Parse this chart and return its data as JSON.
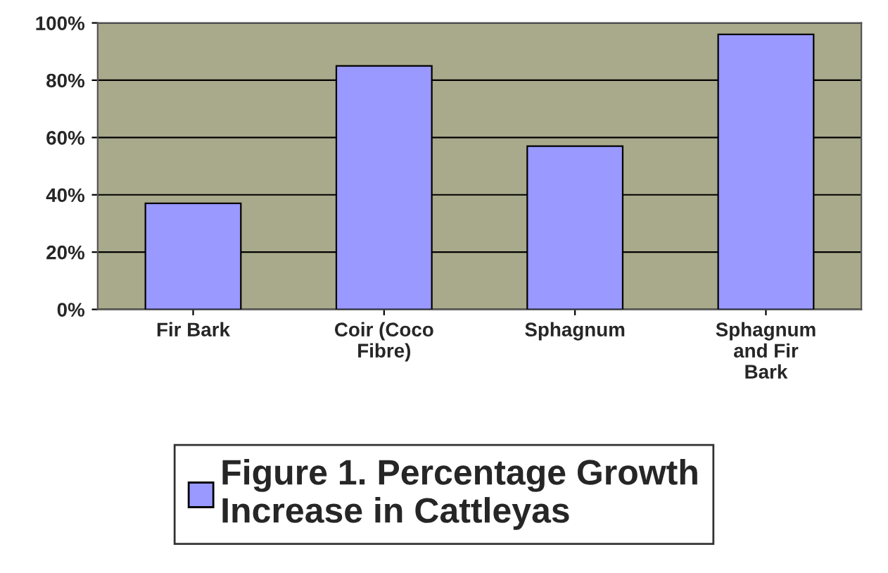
{
  "chart_data": {
    "type": "bar",
    "categories": [
      "Fir Bark",
      "Coir (Coco Fibre)",
      "Sphagnum",
      "Sphagnum and Fir Bark"
    ],
    "series": [
      {
        "name": "Figure 1. Percentage Growth Increase in Cattleyas",
        "color": "#9999ff",
        "values": [
          37,
          85,
          57,
          96
        ]
      }
    ],
    "ylim": [
      0,
      100
    ],
    "yticks": [
      {
        "value": 0,
        "label": "0%"
      },
      {
        "value": 20,
        "label": "20%"
      },
      {
        "value": 40,
        "label": "40%"
      },
      {
        "value": 60,
        "label": "60%"
      },
      {
        "value": 80,
        "label": "80%"
      },
      {
        "value": 100,
        "label": "100%"
      }
    ],
    "grid": "y",
    "legend": "bottom"
  }
}
